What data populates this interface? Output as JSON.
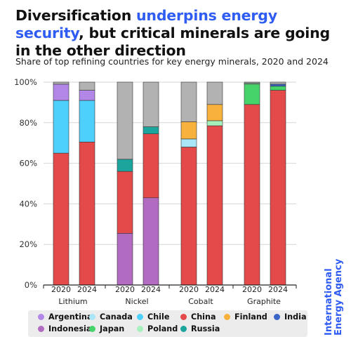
{
  "header": {
    "title_part1": "Diversification ",
    "title_highlight": "underpins energy security",
    "title_part2": ", but critical minerals are going in the other direction",
    "subtitle": "Share of top refining countries for key energy minerals, 2020 and 2024"
  },
  "watermark": {
    "line1": "International",
    "line2": "Energy Agency"
  },
  "colors": {
    "accent": "#2f5cf3",
    "Argentina": "#b287e8",
    "Canada": "#a9e6f7",
    "Chile": "#4dd0fb",
    "China": "#e44a4a",
    "Finland": "#f8b13c",
    "India": "#3b66c8",
    "Indonesia": "#b16bc1",
    "Japan": "#46d36a",
    "Poland": "#a6f0bc",
    "Russia": "#1ba59c",
    "Other": "#b2b2b2"
  },
  "chart_data": {
    "type": "bar",
    "stacked": true,
    "title": "Diversification underpins energy security, but critical minerals are going in the other direction",
    "subtitle": "Share of top refining countries for key energy minerals, 2020 and 2024",
    "ylim": [
      0,
      100
    ],
    "y_ticks": [
      "0%",
      "20%",
      "40%",
      "60%",
      "80%",
      "100%"
    ],
    "grid": true,
    "legend_position": "bottom",
    "legend": [
      "Argentina",
      "Canada",
      "Chile",
      "China",
      "Finland",
      "India",
      "Indonesia",
      "Japan",
      "Poland",
      "Russia"
    ],
    "groups": [
      {
        "name": "Lithium",
        "bars": [
          {
            "year": "2020",
            "segments": [
              {
                "country": "China",
                "value": 65
              },
              {
                "country": "Chile",
                "value": 26
              },
              {
                "country": "Argentina",
                "value": 8
              },
              {
                "country": "Other",
                "value": 1
              }
            ]
          },
          {
            "year": "2024",
            "segments": [
              {
                "country": "China",
                "value": 70.5
              },
              {
                "country": "Chile",
                "value": 20.5
              },
              {
                "country": "Argentina",
                "value": 5
              },
              {
                "country": "Other",
                "value": 4
              }
            ]
          }
        ]
      },
      {
        "name": "Nickel",
        "bars": [
          {
            "year": "2020",
            "segments": [
              {
                "country": "Indonesia",
                "value": 25.5
              },
              {
                "country": "China",
                "value": 30.5
              },
              {
                "country": "Russia",
                "value": 6
              },
              {
                "country": "Other",
                "value": 38
              }
            ]
          },
          {
            "year": "2024",
            "segments": [
              {
                "country": "Indonesia",
                "value": 43
              },
              {
                "country": "China",
                "value": 31.5
              },
              {
                "country": "Russia",
                "value": 3.5
              },
              {
                "country": "Other",
                "value": 22
              }
            ]
          }
        ]
      },
      {
        "name": "Cobalt",
        "bars": [
          {
            "year": "2020",
            "segments": [
              {
                "country": "China",
                "value": 68
              },
              {
                "country": "Canada",
                "value": 4
              },
              {
                "country": "Finland",
                "value": 8.5
              },
              {
                "country": "Other",
                "value": 19.5
              }
            ]
          },
          {
            "year": "2024",
            "segments": [
              {
                "country": "China",
                "value": 78.5
              },
              {
                "country": "Poland",
                "value": 2.5
              },
              {
                "country": "Finland",
                "value": 8
              },
              {
                "country": "Other",
                "value": 11
              }
            ]
          }
        ]
      },
      {
        "name": "Graphite",
        "bars": [
          {
            "year": "2020",
            "segments": [
              {
                "country": "China",
                "value": 89
              },
              {
                "country": "Japan",
                "value": 10
              },
              {
                "country": "Poland",
                "value": 0.5
              },
              {
                "country": "Other",
                "value": 0.5
              }
            ]
          },
          {
            "year": "2024",
            "segments": [
              {
                "country": "China",
                "value": 96
              },
              {
                "country": "Japan",
                "value": 2
              },
              {
                "country": "India",
                "value": 1
              },
              {
                "country": "Other",
                "value": 1
              }
            ]
          }
        ]
      }
    ]
  }
}
